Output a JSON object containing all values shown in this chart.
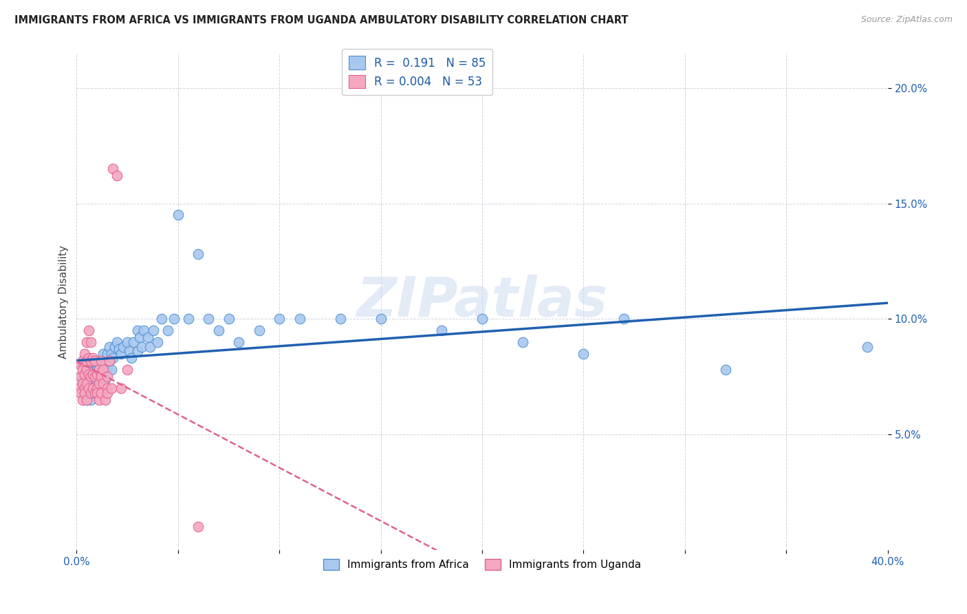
{
  "title": "IMMIGRANTS FROM AFRICA VS IMMIGRANTS FROM UGANDA AMBULATORY DISABILITY CORRELATION CHART",
  "source": "Source: ZipAtlas.com",
  "ylabel": "Ambulatory Disability",
  "xlim": [
    0.0,
    0.4
  ],
  "ylim": [
    0.0,
    0.215
  ],
  "yticks": [
    0.05,
    0.1,
    0.15,
    0.2
  ],
  "ytick_labels": [
    "5.0%",
    "10.0%",
    "15.0%",
    "20.0%"
  ],
  "xticks": [
    0.0,
    0.05,
    0.1,
    0.15,
    0.2,
    0.25,
    0.3,
    0.35,
    0.4
  ],
  "xtick_labels": [
    "0.0%",
    "",
    "",
    "",
    "",
    "",
    "",
    "",
    "40.0%"
  ],
  "legend_r1": "R =  0.191",
  "legend_n1": "N = 85",
  "legend_r2": "R = 0.004",
  "legend_n2": "N = 53",
  "color_africa": "#A8C8F0",
  "color_uganda": "#F5A8C0",
  "color_africa_edge": "#5090D0",
  "color_uganda_edge": "#E06090",
  "color_africa_line": "#2060B0",
  "color_uganda_line": "#E06090",
  "background": "#FFFFFF",
  "watermark": "ZIPatlas",
  "africa_x": [
    0.002,
    0.003,
    0.003,
    0.004,
    0.004,
    0.004,
    0.005,
    0.005,
    0.005,
    0.005,
    0.006,
    0.006,
    0.006,
    0.006,
    0.007,
    0.007,
    0.007,
    0.007,
    0.008,
    0.008,
    0.008,
    0.009,
    0.009,
    0.009,
    0.01,
    0.01,
    0.01,
    0.01,
    0.011,
    0.011,
    0.011,
    0.012,
    0.012,
    0.012,
    0.013,
    0.013,
    0.014,
    0.014,
    0.015,
    0.015,
    0.016,
    0.016,
    0.017,
    0.017,
    0.018,
    0.019,
    0.02,
    0.021,
    0.022,
    0.023,
    0.025,
    0.026,
    0.027,
    0.028,
    0.03,
    0.03,
    0.031,
    0.032,
    0.033,
    0.035,
    0.036,
    0.038,
    0.04,
    0.042,
    0.045,
    0.048,
    0.05,
    0.055,
    0.06,
    0.065,
    0.07,
    0.075,
    0.08,
    0.09,
    0.1,
    0.11,
    0.13,
    0.15,
    0.18,
    0.2,
    0.22,
    0.25,
    0.27,
    0.32,
    0.39
  ],
  "africa_y": [
    0.075,
    0.072,
    0.08,
    0.068,
    0.074,
    0.078,
    0.07,
    0.065,
    0.073,
    0.077,
    0.069,
    0.075,
    0.08,
    0.071,
    0.068,
    0.074,
    0.079,
    0.065,
    0.072,
    0.077,
    0.082,
    0.07,
    0.076,
    0.081,
    0.073,
    0.078,
    0.069,
    0.075,
    0.08,
    0.074,
    0.071,
    0.077,
    0.082,
    0.073,
    0.078,
    0.085,
    0.08,
    0.074,
    0.085,
    0.079,
    0.088,
    0.082,
    0.085,
    0.078,
    0.083,
    0.088,
    0.09,
    0.087,
    0.085,
    0.088,
    0.09,
    0.086,
    0.083,
    0.09,
    0.086,
    0.095,
    0.092,
    0.088,
    0.095,
    0.092,
    0.088,
    0.095,
    0.09,
    0.1,
    0.095,
    0.1,
    0.145,
    0.1,
    0.128,
    0.1,
    0.095,
    0.1,
    0.09,
    0.095,
    0.1,
    0.1,
    0.1,
    0.1,
    0.095,
    0.1,
    0.09,
    0.085,
    0.1,
    0.078,
    0.088
  ],
  "uganda_x": [
    0.001,
    0.002,
    0.002,
    0.002,
    0.003,
    0.003,
    0.003,
    0.003,
    0.004,
    0.004,
    0.004,
    0.004,
    0.005,
    0.005,
    0.005,
    0.005,
    0.005,
    0.006,
    0.006,
    0.006,
    0.006,
    0.007,
    0.007,
    0.007,
    0.007,
    0.008,
    0.008,
    0.008,
    0.009,
    0.009,
    0.009,
    0.01,
    0.01,
    0.01,
    0.011,
    0.011,
    0.011,
    0.012,
    0.012,
    0.012,
    0.013,
    0.013,
    0.014,
    0.015,
    0.015,
    0.015,
    0.016,
    0.017,
    0.018,
    0.02,
    0.022,
    0.025,
    0.06
  ],
  "uganda_y": [
    0.07,
    0.075,
    0.068,
    0.08,
    0.072,
    0.078,
    0.065,
    0.082,
    0.07,
    0.076,
    0.068,
    0.085,
    0.072,
    0.078,
    0.065,
    0.082,
    0.09,
    0.07,
    0.076,
    0.083,
    0.095,
    0.068,
    0.075,
    0.082,
    0.09,
    0.07,
    0.076,
    0.083,
    0.068,
    0.075,
    0.082,
    0.07,
    0.076,
    0.068,
    0.072,
    0.078,
    0.065,
    0.068,
    0.075,
    0.082,
    0.072,
    0.078,
    0.065,
    0.07,
    0.075,
    0.068,
    0.082,
    0.07,
    0.165,
    0.162,
    0.07,
    0.078,
    0.01
  ]
}
